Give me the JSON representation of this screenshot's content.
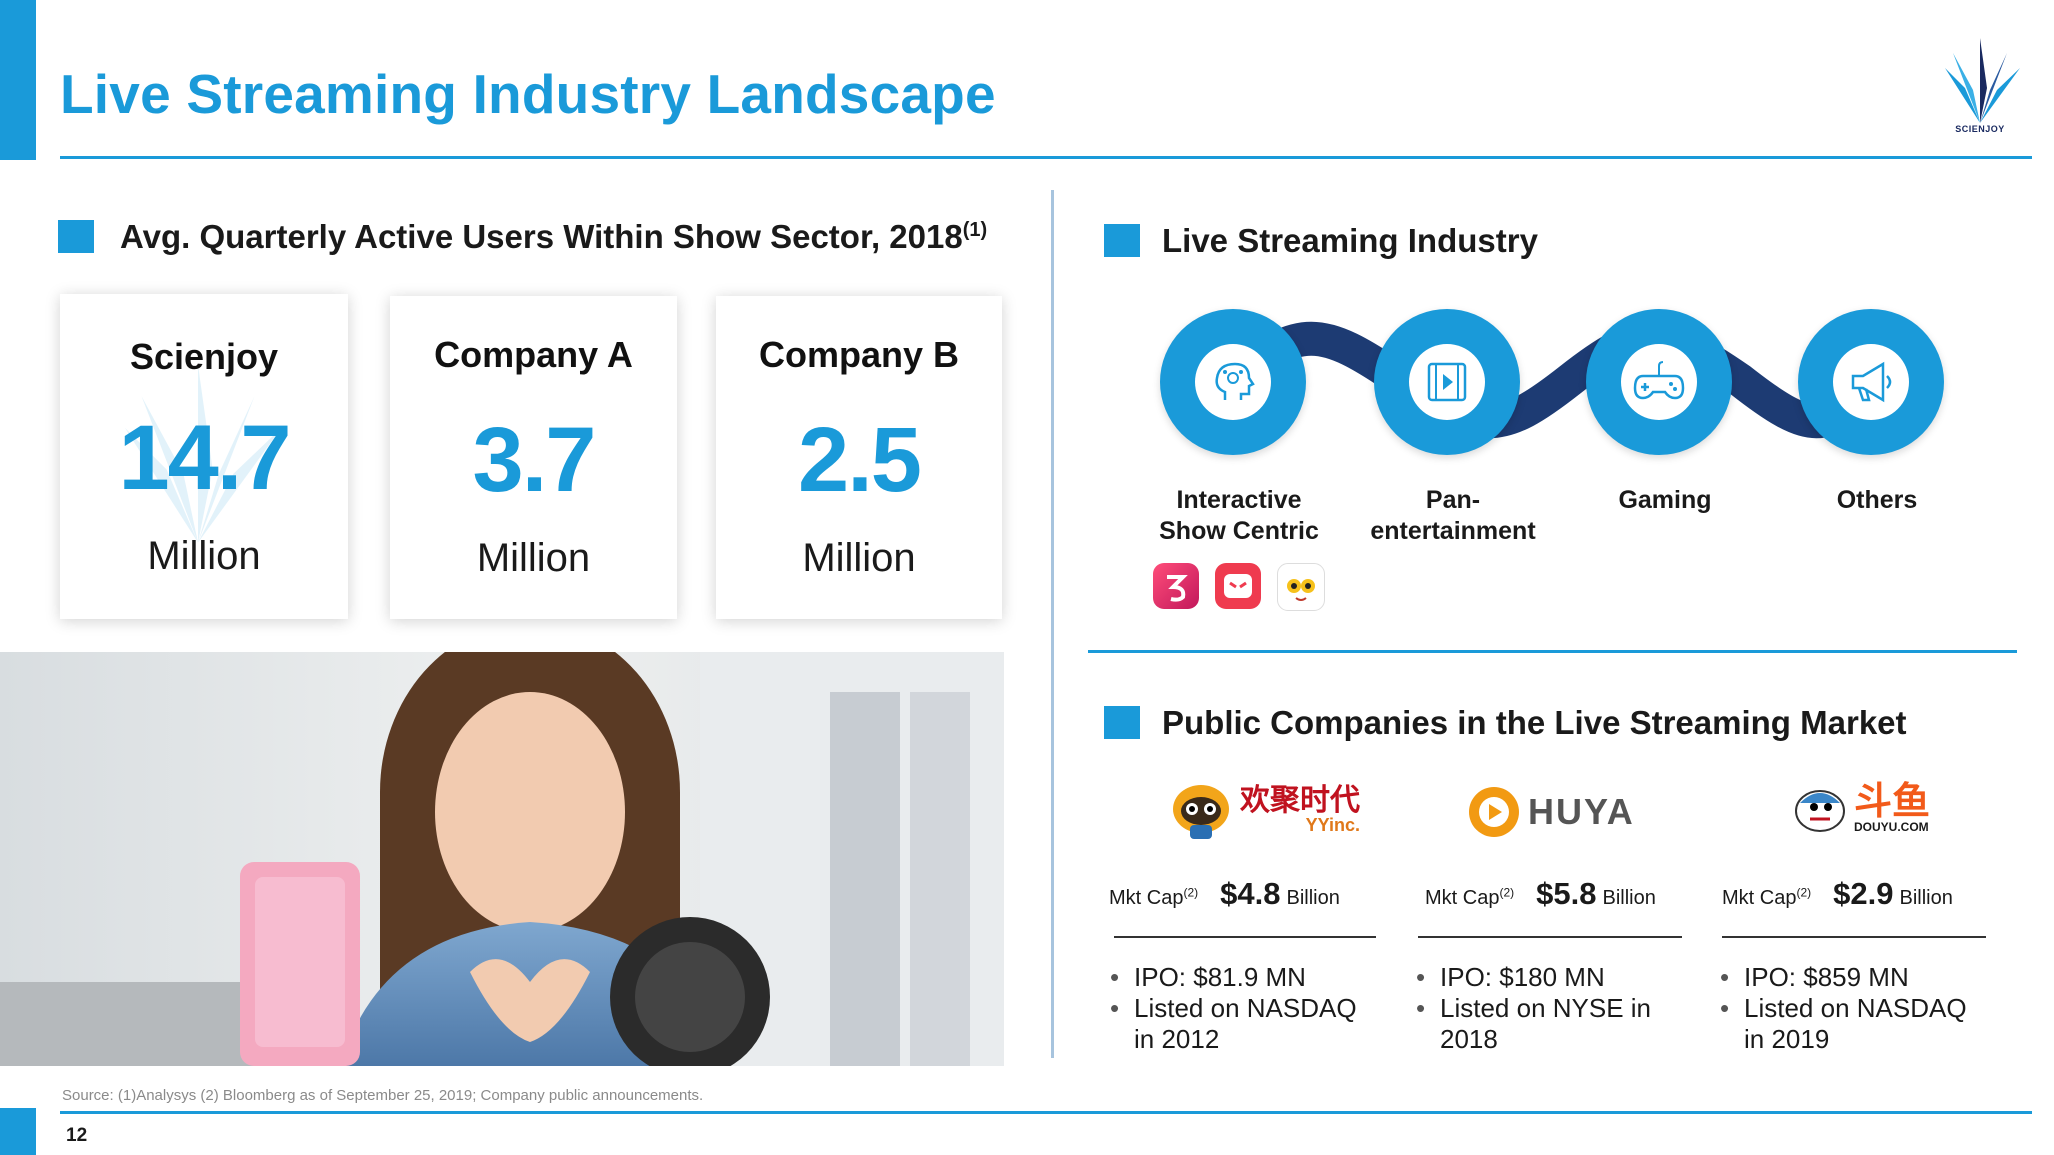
{
  "slide": {
    "title": "Live Streaming Industry Landscape",
    "logo_text": "SCIENJOY",
    "page_number": "12",
    "source": "Source: (1)Analysys (2) Bloomberg as of September 25, 2019; Company public announcements."
  },
  "left": {
    "heading": "Avg. Quarterly Active Users Within Show Sector, 2018",
    "heading_sup": "(1)",
    "cards": [
      {
        "name": "Scienjoy",
        "value": "14.7",
        "unit": "Million"
      },
      {
        "name": "Company A",
        "value": "3.7",
        "unit": "Million"
      },
      {
        "name": "Company B",
        "value": "2.5",
        "unit": "Million"
      }
    ]
  },
  "industry": {
    "heading": "Live Streaming Industry",
    "categories": [
      {
        "line1": "Interactive",
        "line2": "Show Centric",
        "icon": "ai-head-icon"
      },
      {
        "line1": "Pan-",
        "line2": "entertainment",
        "icon": "film-play-icon"
      },
      {
        "line1": "Gaming",
        "line2": "",
        "icon": "gamepad-icon"
      },
      {
        "line1": "Others",
        "line2": "",
        "icon": "megaphone-icon"
      }
    ]
  },
  "public": {
    "heading": "Public Companies in the Live Streaming Market",
    "companies": [
      {
        "logo_cn": "欢聚时代",
        "logo_en": "YYinc.",
        "mkt_label": "Mkt Cap",
        "mkt_sup": "(2)",
        "mkt_value": "$4.8",
        "mkt_unit": "Billion",
        "ipo": "IPO: $81.9 MN",
        "listing_line1": "Listed on NASDAQ",
        "listing_line2": "in 2012"
      },
      {
        "logo_cn": "",
        "logo_en": "HUYA",
        "mkt_label": "Mkt Cap",
        "mkt_sup": "(2)",
        "mkt_value": "$5.8",
        "mkt_unit": "Billion",
        "ipo": "IPO: $180 MN",
        "listing_line1": "Listed on NYSE in",
        "listing_line2": "2018"
      },
      {
        "logo_cn": "斗鱼",
        "logo_en": "DOUYU.COM",
        "mkt_label": "Mkt Cap",
        "mkt_sup": "(2)",
        "mkt_value": "$2.9",
        "mkt_unit": "Billion",
        "ipo": "IPO: $859 MN",
        "listing_line1": "Listed on NASDAQ",
        "listing_line2": "in 2019"
      }
    ]
  },
  "colors": {
    "accent": "#1a9ad9",
    "dark_connector": "#1d3b73",
    "text": "#1a1a1a"
  }
}
